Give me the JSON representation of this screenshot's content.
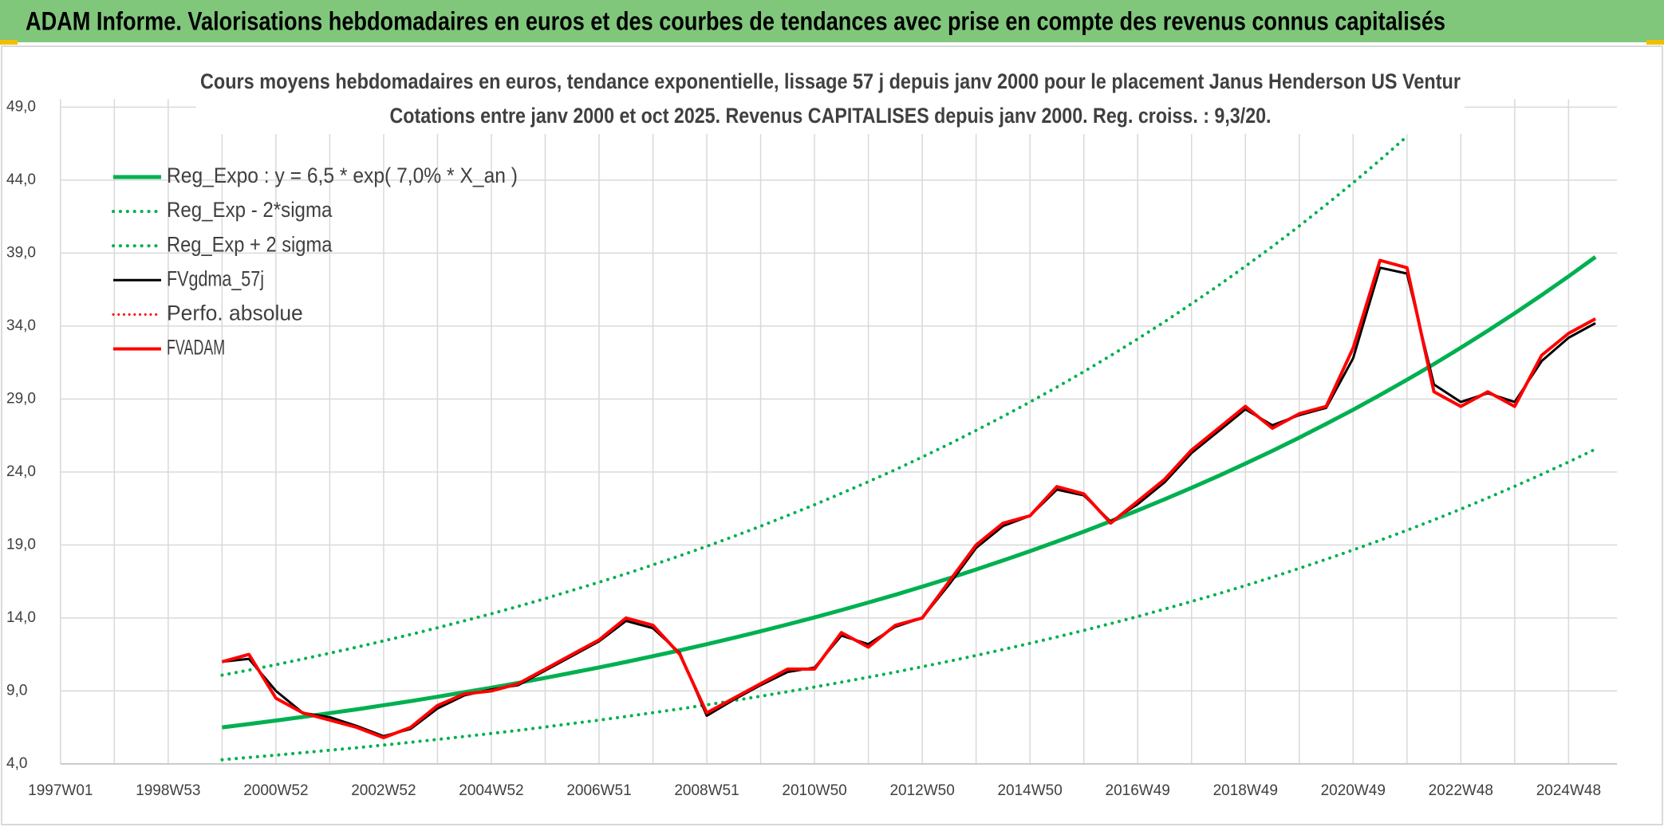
{
  "page_title": "ADAM Informe. Valorisations hebdomadaires en euros et des courbes de tendances avec prise en compte des revenus connus capitalisés",
  "chart_data": {
    "type": "line",
    "title": "Cours moyens hebdomadaires en euros, tendance exponentielle, lissage 57 j depuis janv 2000 pour le placement Janus Henderson US Ventur",
    "subtitle": "Cotations entre janv 2000 et oct 2025. Revenus CAPITALISES depuis janv 2000. Reg. croiss. : 9,3/20.",
    "categories": [
      "1997W01",
      null,
      null,
      null,
      "1998W53",
      null,
      null,
      null,
      "2000W52",
      null,
      null,
      null,
      "2002W52",
      null,
      null,
      null,
      "2004W52",
      null,
      null,
      null,
      "2006W51",
      null,
      null,
      null,
      "2008W51",
      null,
      null,
      null,
      "2010W50",
      null,
      null,
      null,
      "2012W50",
      null,
      null,
      null,
      "2014W50",
      null,
      null,
      null,
      "2016W49",
      null,
      null,
      null,
      "2018W49",
      null,
      null,
      null,
      "2020W49",
      null,
      null,
      null,
      "2022W48",
      null,
      null,
      null,
      "2024W48",
      null
    ],
    "ylim": [
      4,
      49
    ],
    "yticks": [
      {
        "value": 4,
        "label": "4,0"
      },
      {
        "value": 9,
        "label": "9,0"
      },
      {
        "value": 14,
        "label": "14,0"
      },
      {
        "value": 19,
        "label": "19,0"
      },
      {
        "value": 24,
        "label": "24,0"
      },
      {
        "value": 29,
        "label": "29,0"
      },
      {
        "value": 34,
        "label": "34,0"
      },
      {
        "value": 39,
        "label": "39,0"
      },
      {
        "value": 44,
        "label": "44,0"
      },
      {
        "value": 49,
        "label": "49,0"
      }
    ],
    "grid": true,
    "legend": "upper left",
    "series": [
      {
        "name": "Reg_Expo : y = 6,5 * exp( 7,0% *  X_an )",
        "color": "#00b050",
        "style": "solid",
        "width": 5,
        "values": [
          null,
          null,
          null,
          null,
          null,
          null,
          6.5,
          6.73,
          6.97,
          7.22,
          7.48,
          7.74,
          8.02,
          8.3,
          8.6,
          8.91,
          9.22,
          9.55,
          9.89,
          10.25,
          10.61,
          10.99,
          11.38,
          11.78,
          12.2,
          12.64,
          13.09,
          13.56,
          14.04,
          14.54,
          15.06,
          15.59,
          16.15,
          16.72,
          17.32,
          17.94,
          18.58,
          19.24,
          19.92,
          20.63,
          21.37,
          22.13,
          22.92,
          23.73,
          24.58,
          25.45,
          26.36,
          27.3,
          28.27,
          29.28,
          30.32,
          31.4,
          32.52,
          33.68,
          34.88,
          36.12,
          37.41,
          38.74
        ]
      },
      {
        "name": "Reg_Exp - 2*sigma",
        "color": "#00b050",
        "style": "dotted",
        "width": 4,
        "values": [
          null,
          null,
          null,
          null,
          null,
          null,
          4.29,
          4.44,
          4.6,
          4.77,
          4.94,
          5.11,
          5.29,
          5.48,
          5.68,
          5.88,
          6.09,
          6.3,
          6.53,
          6.77,
          7.0,
          7.25,
          7.51,
          7.77,
          8.05,
          8.34,
          8.64,
          8.95,
          9.27,
          9.6,
          9.94,
          10.29,
          10.66,
          11.04,
          11.43,
          11.84,
          12.26,
          12.7,
          13.15,
          13.62,
          14.1,
          14.61,
          15.13,
          15.66,
          16.22,
          16.8,
          17.4,
          18.02,
          18.66,
          19.32,
          20.01,
          20.72,
          21.46,
          22.23,
          23.02,
          23.84,
          24.69,
          25.57
        ]
      },
      {
        "name": "Reg_Exp + 2 sigma",
        "color": "#00b050",
        "style": "dotted",
        "width": 4,
        "values": [
          null,
          null,
          null,
          null,
          null,
          null,
          10.08,
          10.43,
          10.8,
          11.19,
          11.59,
          12.0,
          12.43,
          12.87,
          13.33,
          13.81,
          14.29,
          14.8,
          15.33,
          15.89,
          16.45,
          17.03,
          17.64,
          18.26,
          18.91,
          19.59,
          20.29,
          21.02,
          21.76,
          22.54,
          23.34,
          24.16,
          25.03,
          25.92,
          26.85,
          27.81,
          28.8,
          29.82,
          30.88,
          31.98,
          33.12,
          34.3,
          35.53,
          36.78,
          38.1,
          39.45,
          40.86,
          42.32,
          43.82,
          45.38,
          47.0,
          null,
          null,
          null,
          null,
          null,
          null,
          null
        ]
      },
      {
        "name": "FVgdma_57j",
        "color": "#000000",
        "style": "solid",
        "width": 3,
        "values": [
          null,
          null,
          null,
          null,
          null,
          null,
          11,
          11.2,
          9,
          7.5,
          7.2,
          6.6,
          5.9,
          6.4,
          7.8,
          8.7,
          9.1,
          9.4,
          10.4,
          11.4,
          12.4,
          13.8,
          13.3,
          11.6,
          7.3,
          8.4,
          9.4,
          10.3,
          10.6,
          12.8,
          12.2,
          13.4,
          14,
          16.3,
          18.8,
          20.3,
          21,
          22.8,
          22.4,
          20.6,
          21.8,
          23.3,
          25.3,
          26.8,
          28.3,
          27.2,
          27.9,
          28.4,
          31.8,
          38,
          37.6,
          30,
          28.8,
          29.4,
          28.8,
          31.6,
          33.2,
          34.2
        ]
      },
      {
        "name": "Perfo. absolue",
        "color": "#ff0000",
        "style": "dotted",
        "width": 3
      },
      {
        "name": "FVADAM",
        "color": "#ff0000",
        "style": "solid",
        "width": 4,
        "values": [
          null,
          null,
          null,
          null,
          null,
          null,
          11,
          11.5,
          8.5,
          7.5,
          7,
          6.5,
          5.8,
          6.5,
          8,
          8.8,
          9,
          9.5,
          10.5,
          11.5,
          12.5,
          14,
          13.5,
          11.5,
          7.5,
          8.5,
          9.5,
          10.5,
          10.5,
          13,
          12,
          13.5,
          14,
          16.5,
          19,
          20.5,
          21,
          23,
          22.5,
          20.5,
          22,
          23.5,
          25.5,
          27,
          28.5,
          27,
          28,
          28.5,
          32.5,
          38.5,
          38,
          29.5,
          28.5,
          29.5,
          28.5,
          32,
          33.5,
          34.5
        ]
      }
    ]
  }
}
